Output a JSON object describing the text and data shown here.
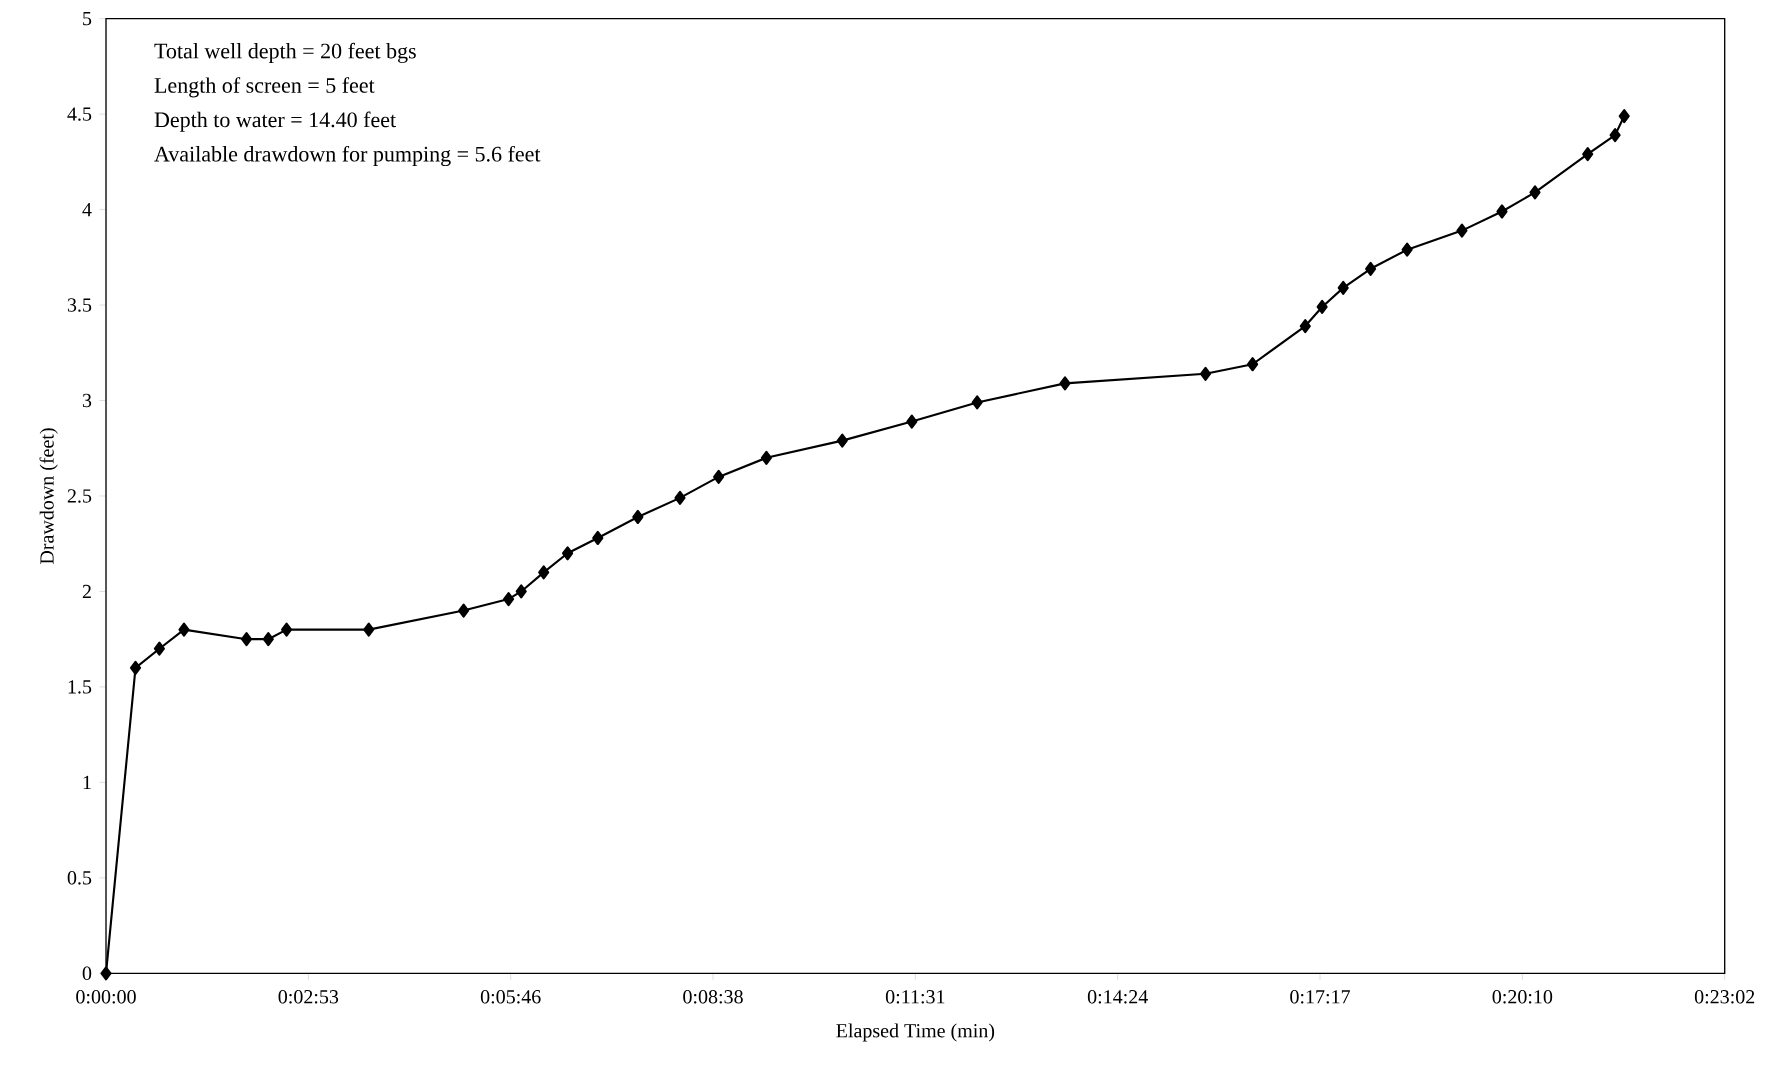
{
  "chart_data": {
    "type": "line",
    "xlabel": "Elapsed Time (min)",
    "ylabel": "Drawdown (feet)",
    "annotations": [
      "Total well depth = 20 feet bgs",
      "Length of screen = 5 feet",
      "Depth to water = 14.40 feet",
      "Available drawdown for pumping = 5.6 feet"
    ],
    "series": [
      {
        "color": "#000000",
        "x": [
          0,
          0.42,
          0.76,
          1.11,
          2.0,
          2.31,
          2.57,
          3.74,
          5.09,
          5.73,
          5.91,
          6.23,
          6.57,
          7.0,
          7.57,
          8.17,
          8.72,
          9.4,
          10.48,
          11.47,
          12.4,
          13.65,
          15.65,
          16.32,
          17.07,
          17.31,
          17.61,
          18.0,
          18.52,
          19.3,
          19.87,
          20.34,
          21.09,
          21.48,
          21.61
        ],
        "values": [
          0,
          1.6,
          1.7,
          1.8,
          1.75,
          1.75,
          1.8,
          1.8,
          1.9,
          1.96,
          2.0,
          2.1,
          2.2,
          2.28,
          2.39,
          2.49,
          2.6,
          2.7,
          2.79,
          2.89,
          2.99,
          3.09,
          3.14,
          3.19,
          3.39,
          3.49,
          3.59,
          3.69,
          3.79,
          3.89,
          3.99,
          4.09,
          4.29,
          4.39,
          4.49
        ]
      }
    ],
    "xlim": [
      0,
      23.04
    ],
    "xticks": [
      {
        "value": 0,
        "label": "0:00:00"
      },
      {
        "value": 2.88,
        "label": "0:02:53"
      },
      {
        "value": 5.76,
        "label": "0:05:46"
      },
      {
        "value": 8.64,
        "label": "0:08:38"
      },
      {
        "value": 11.52,
        "label": "0:11:31"
      },
      {
        "value": 14.4,
        "label": "0:14:24"
      },
      {
        "value": 17.28,
        "label": "0:17:17"
      },
      {
        "value": 20.16,
        "label": "0:20:10"
      },
      {
        "value": 23.04,
        "label": "0:23:02"
      }
    ],
    "ylim": [
      0,
      5
    ],
    "yticks": [
      0,
      0.5,
      1,
      1.5,
      2,
      2.5,
      3,
      3.5,
      4,
      4.5,
      5
    ],
    "grid": false,
    "marker": "diamond",
    "line_style": "solid"
  }
}
